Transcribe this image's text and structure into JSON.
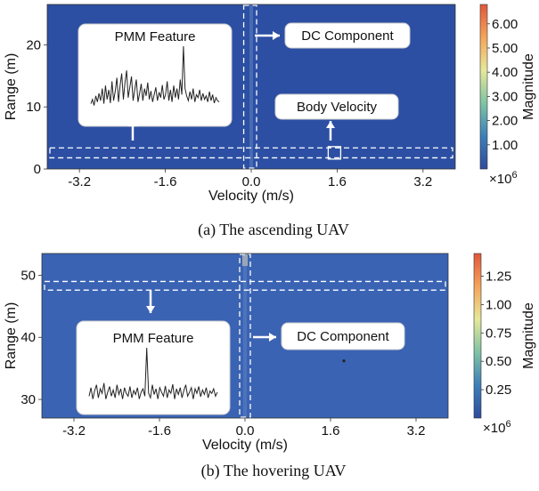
{
  "chart_data": [
    {
      "type": "heatmap",
      "caption": "(a) The ascending UAV",
      "xlabel": "Velocity (m/s)",
      "ylabel": "Range (m)",
      "xlim": [
        -3.8,
        3.8
      ],
      "ylim": [
        0,
        26.5
      ],
      "xticks": [
        "-3.2",
        "-1.6",
        "0.0",
        "1.6",
        "3.2"
      ],
      "xtick_values": [
        -3.2,
        -1.6,
        0.0,
        1.6,
        3.2
      ],
      "yticks": [
        "0",
        "10",
        "20"
      ],
      "ytick_values": [
        0,
        10,
        20
      ],
      "background_color": "#2c4fa3",
      "colorbar": {
        "label": "Magnitude",
        "range": [
          0,
          6.8
        ],
        "ticks": [
          "1.00",
          "2.00",
          "3.00",
          "4.00",
          "5.00",
          "6.00"
        ],
        "tick_values": [
          1,
          2,
          3,
          4,
          5,
          6
        ],
        "multiplier": "×10",
        "multiplier_exp": "6"
      },
      "annotations": [
        "PMM Feature",
        "DC Component",
        "Body Velocity"
      ],
      "inset_signal": [
        0.05,
        0.12,
        0.02,
        0.18,
        0.08,
        0.22,
        0.1,
        0.3,
        0.05,
        0.35,
        0.12,
        0.28,
        0.06,
        0.42,
        0.1,
        0.25,
        0.48,
        0.08,
        0.35,
        0.55,
        0.12,
        0.4,
        0.6,
        0.15,
        0.32,
        0.5,
        0.1,
        0.28,
        0.45,
        0.08,
        0.22,
        0.38,
        0.1,
        0.3,
        0.18,
        0.4,
        0.12,
        0.26,
        0.08,
        0.2,
        0.32,
        0.1,
        0.24,
        0.15,
        0.36,
        0.12,
        0.2,
        0.42,
        0.1,
        0.28,
        0.08,
        0.35,
        0.15,
        0.3,
        0.12,
        0.45,
        0.2,
        1.0,
        0.3,
        0.18,
        0.1,
        0.25,
        0.12,
        0.3,
        0.08,
        0.2,
        0.15,
        0.28,
        0.1,
        0.22,
        0.12,
        0.18,
        0.08,
        0.25,
        0.1,
        0.2,
        0.06,
        0.15,
        0.1,
        0.08
      ]
    },
    {
      "type": "heatmap",
      "caption": "(b) The hovering UAV",
      "xlabel": "Velocity (m/s)",
      "ylabel": "Range (m)",
      "xlim": [
        -3.8,
        3.8
      ],
      "ylim": [
        27,
        53.5
      ],
      "xticks": [
        "-3.2",
        "-1.6",
        "0.0",
        "1.6",
        "3.2"
      ],
      "xtick_values": [
        -3.2,
        -1.6,
        0.0,
        1.6,
        3.2
      ],
      "yticks": [
        "30",
        "40",
        "50"
      ],
      "ytick_values": [
        30,
        40,
        50
      ],
      "background_color": "#3a63b3",
      "colorbar": {
        "label": "Magnitude",
        "range": [
          0,
          1.45
        ],
        "ticks": [
          "0.25",
          "0.50",
          "0.75",
          "1.00",
          "1.25"
        ],
        "tick_values": [
          0.25,
          0.5,
          0.75,
          1.0,
          1.25
        ],
        "multiplier": "×10",
        "multiplier_exp": "6"
      },
      "annotations": [
        "PMM Feature",
        "DC Component"
      ],
      "inset_signal": [
        0.15,
        0.3,
        0.1,
        0.25,
        0.35,
        0.12,
        0.28,
        0.2,
        0.38,
        0.1,
        0.22,
        0.32,
        0.15,
        0.26,
        0.12,
        0.35,
        0.18,
        0.28,
        0.1,
        0.3,
        0.2,
        0.15,
        0.32,
        0.12,
        0.25,
        0.18,
        0.3,
        0.1,
        0.22,
        0.28,
        0.15,
        1.0,
        0.2,
        0.12,
        0.35,
        0.18,
        0.28,
        0.1,
        0.3,
        0.22,
        0.15,
        0.33,
        0.12,
        0.26,
        0.2,
        0.36,
        0.1,
        0.28,
        0.18,
        0.3,
        0.12,
        0.25,
        0.35,
        0.15,
        0.22,
        0.3,
        0.1,
        0.28,
        0.2,
        0.32,
        0.14,
        0.26,
        0.18,
        0.3,
        0.12,
        0.24,
        0.2,
        0.28,
        0.15,
        0.22
      ]
    }
  ]
}
